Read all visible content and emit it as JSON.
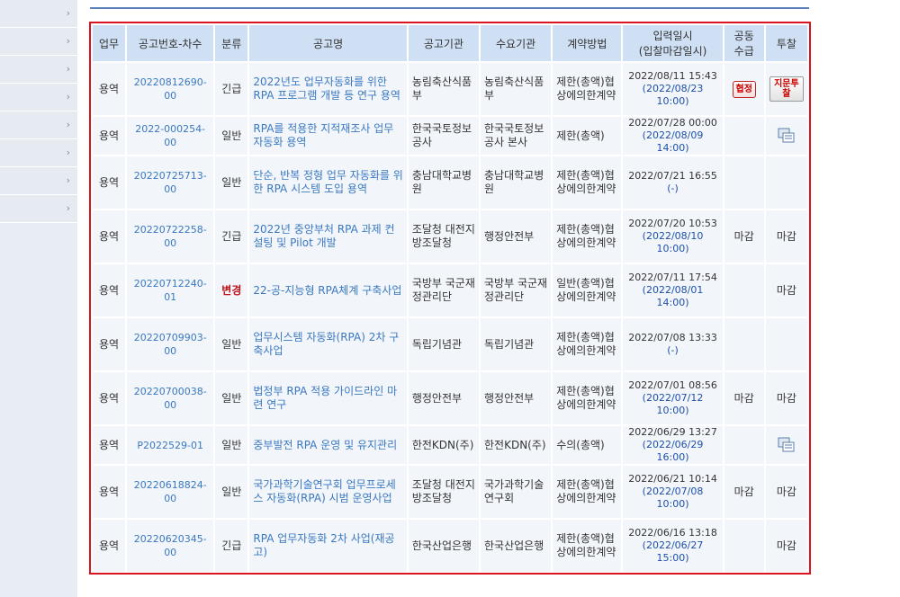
{
  "sidebar": {
    "items": [
      "›",
      "›",
      "›",
      "›",
      "›",
      "›",
      "›",
      "›"
    ]
  },
  "table": {
    "headers": {
      "type": "업무",
      "no": "공고번호-차수",
      "cat": "분류",
      "title": "공고명",
      "org": "공고기관",
      "demand": "수요기관",
      "method": "계약방법",
      "date1": "입력일시",
      "date2": "(입찰마감일시)",
      "joint1": "공동",
      "joint2": "수급",
      "bid": "투찰"
    },
    "rows": [
      {
        "type": "용역",
        "no": "20220812690-00",
        "cat": "긴급",
        "title": "2022년도 업무자동화를 위한 RPA 프로그램 개발 등 연구 용역",
        "org": "농림축산식품부",
        "demand": "농림축산식품부",
        "method": "제한(총액)협상에의한계약",
        "date": "2022/08/11 15:43",
        "deadline": "(2022/08/23 10:00)",
        "joint": "협정",
        "bid": "지문투찰"
      },
      {
        "type": "용역",
        "no": "2022-000254-00",
        "cat": "일반",
        "title": "RPA를 적용한 지적재조사 업무 자동화 용역",
        "org": "한국국토정보공사",
        "demand": "한국국토정보공사 본사",
        "method": "제한(총액)",
        "date": "2022/07/28 00:00",
        "deadline": "(2022/08/09 14:00)",
        "joint": "",
        "bid": ""
      },
      {
        "type": "용역",
        "no": "20220725713-00",
        "cat": "일반",
        "title": "단순, 반복 정형 업무 자동화를 위한 RPA 시스템 도입 용역",
        "org": "충남대학교병원",
        "demand": "충남대학교병원",
        "method": "제한(총액)협상에의한계약",
        "date": "2022/07/21 16:55",
        "deadline": "(-)",
        "joint": "",
        "bid": ""
      },
      {
        "type": "용역",
        "no": "20220722258-00",
        "cat": "긴급",
        "title": "2022년 중앙부처 RPA 과제 컨설팅 및 Pilot 개발",
        "org": "조달청 대전지방조달청",
        "demand": "행정안전부",
        "method": "제한(총액)협상에의한계약",
        "date": "2022/07/20 10:53",
        "deadline": "(2022/08/10 10:00)",
        "joint": "마감",
        "bid": "마감"
      },
      {
        "type": "용역",
        "no": "20220712240-01",
        "cat": "변경",
        "title": "22-공-지능형 RPA체계 구축사업",
        "org": "국방부 국군재정관리단",
        "demand": "국방부 국군재정관리단",
        "method": "일반(총액)협상에의한계약",
        "date": "2022/07/11 17:54",
        "deadline": "(2022/08/01 14:00)",
        "joint": "",
        "bid": "마감"
      },
      {
        "type": "용역",
        "no": "20220709903-00",
        "cat": "일반",
        "title": "업무시스템 자동화(RPA) 2차 구축사업",
        "org": "독립기념관",
        "demand": "독립기념관",
        "method": "제한(총액)협상에의한계약",
        "date": "2022/07/08 13:33",
        "deadline": "(-)",
        "joint": "",
        "bid": ""
      },
      {
        "type": "용역",
        "no": "20220700038-00",
        "cat": "일반",
        "title": "법정부 RPA 적용 가이드라인 마련 연구",
        "org": "행정안전부",
        "demand": "행정안전부",
        "method": "제한(총액)협상에의한계약",
        "date": "2022/07/01 08:56",
        "deadline": "(2022/07/12 10:00)",
        "joint": "마감",
        "bid": "마감"
      },
      {
        "type": "용역",
        "no": "P2022529-01",
        "cat": "일반",
        "title": "중부발전 RPA 운영 및 유지관리",
        "org": "한전KDN(주)",
        "demand": "한전KDN(주)",
        "method": "수의(총액)",
        "date": "2022/06/29 13:27",
        "deadline": "(2022/06/29 16:00)",
        "joint": "",
        "bid": ""
      },
      {
        "type": "용역",
        "no": "20220618824-00",
        "cat": "일반",
        "title": "국가과학기술연구회 업무프로세스 자동화(RPA) 시범 운영사업",
        "org": "조달청 대전지방조달청",
        "demand": "국가과학기술연구회",
        "method": "제한(총액)협상에의한계약",
        "date": "2022/06/21 10:14",
        "deadline": "(2022/07/08 10:00)",
        "joint": "마감",
        "bid": "마감"
      },
      {
        "type": "용역",
        "no": "20220620345-00",
        "cat": "긴급",
        "title": "RPA 업무자동화 2차 사업(재공고)",
        "org": "한국산업은행",
        "demand": "한국산업은행",
        "method": "제한(총액)협상에의한계약",
        "date": "2022/06/16 13:18",
        "deadline": "(2022/06/27 15:00)",
        "joint": "",
        "bid": "마감"
      }
    ]
  }
}
